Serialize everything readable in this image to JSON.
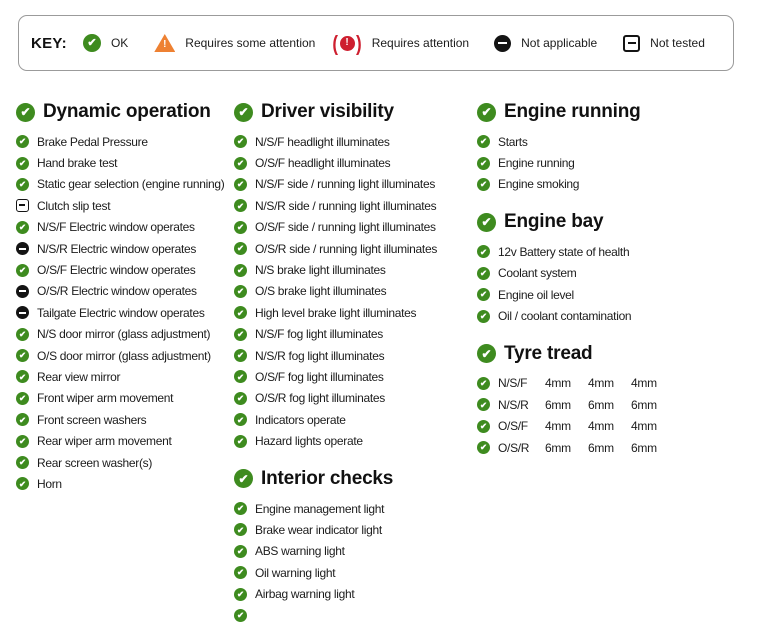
{
  "colors": {
    "ok_green": "#3e8b1f",
    "attention_orange": "#ee8132",
    "attention_red": "#ce1f2f",
    "icon_black": "#141414"
  },
  "key": {
    "label": "KEY:",
    "entries": [
      {
        "status": "ok",
        "icon": "ok-icon",
        "label": "OK"
      },
      {
        "status": "some-attention",
        "icon": "warning-triangle-icon",
        "label": "Requires some attention"
      },
      {
        "status": "attention",
        "icon": "brake-warning-icon",
        "label": "Requires attention"
      },
      {
        "status": "not-applicable",
        "icon": "not-applicable-icon",
        "label": "Not applicable"
      },
      {
        "status": "not-tested",
        "icon": "not-tested-icon",
        "label": "Not tested"
      }
    ]
  },
  "columns": [
    {
      "sections": [
        {
          "title": "Dynamic operation",
          "status": "ok",
          "items": [
            {
              "status": "ok",
              "label": "Brake Pedal Pressure"
            },
            {
              "status": "ok",
              "label": "Hand brake test"
            },
            {
              "status": "ok",
              "label": "Static gear selection (engine running)"
            },
            {
              "status": "not-tested",
              "label": "Clutch slip test"
            },
            {
              "status": "ok",
              "label": "N/S/F Electric window operates"
            },
            {
              "status": "not-applicable",
              "label": "N/S/R Electric window operates"
            },
            {
              "status": "ok",
              "label": "O/S/F Electric window operates"
            },
            {
              "status": "not-applicable",
              "label": "O/S/R Electric window operates"
            },
            {
              "status": "not-applicable",
              "label": "Tailgate Electric window operates"
            },
            {
              "status": "ok",
              "label": "N/S door mirror (glass adjustment)"
            },
            {
              "status": "ok",
              "label": "O/S door mirror (glass adjustment)"
            },
            {
              "status": "ok",
              "label": "Rear view mirror"
            },
            {
              "status": "ok",
              "label": "Front wiper arm movement"
            },
            {
              "status": "ok",
              "label": "Front screen washers"
            },
            {
              "status": "ok",
              "label": "Rear wiper arm movement"
            },
            {
              "status": "ok",
              "label": "Rear screen washer(s)"
            },
            {
              "status": "ok",
              "label": "Horn"
            }
          ]
        }
      ]
    },
    {
      "sections": [
        {
          "title": "Driver visibility",
          "status": "ok",
          "items": [
            {
              "status": "ok",
              "label": "N/S/F headlight illuminates"
            },
            {
              "status": "ok",
              "label": "O/S/F headlight illuminates"
            },
            {
              "status": "ok",
              "label": "N/S/F side / running light illuminates"
            },
            {
              "status": "ok",
              "label": "N/S/R side / running light illuminates"
            },
            {
              "status": "ok",
              "label": "O/S/F side / running light illuminates"
            },
            {
              "status": "ok",
              "label": "O/S/R side / running light illuminates"
            },
            {
              "status": "ok",
              "label": "N/S brake light illuminates"
            },
            {
              "status": "ok",
              "label": "O/S brake light illuminates"
            },
            {
              "status": "ok",
              "label": "High level brake light illuminates"
            },
            {
              "status": "ok",
              "label": "N/S/F fog light illuminates"
            },
            {
              "status": "ok",
              "label": "N/S/R fog light illuminates"
            },
            {
              "status": "ok",
              "label": "O/S/F fog light illuminates"
            },
            {
              "status": "ok",
              "label": "O/S/R fog light illuminates"
            },
            {
              "status": "ok",
              "label": "Indicators operate"
            },
            {
              "status": "ok",
              "label": "Hazard lights operate"
            }
          ]
        },
        {
          "title": "Interior checks",
          "status": "ok",
          "items": [
            {
              "status": "ok",
              "label": "Engine management light"
            },
            {
              "status": "ok",
              "label": "Brake wear indicator light"
            },
            {
              "status": "ok",
              "label": "ABS warning light"
            },
            {
              "status": "ok",
              "label": "Oil warning light"
            },
            {
              "status": "ok",
              "label": "Airbag warning light"
            },
            {
              "status": "ok",
              "label": ""
            }
          ]
        }
      ]
    },
    {
      "sections": [
        {
          "title": "Engine running",
          "status": "ok",
          "items": [
            {
              "status": "ok",
              "label": "Starts"
            },
            {
              "status": "ok",
              "label": "Engine running"
            },
            {
              "status": "ok",
              "label": "Engine smoking"
            }
          ]
        },
        {
          "title": "Engine bay",
          "status": "ok",
          "items": [
            {
              "status": "ok",
              "label": "12v Battery state of health"
            },
            {
              "status": "ok",
              "label": "Coolant system"
            },
            {
              "status": "ok",
              "label": "Engine oil level"
            },
            {
              "status": "ok",
              "label": "Oil / coolant contamination"
            }
          ]
        },
        {
          "title": "Tyre tread",
          "status": "ok",
          "items": [
            {
              "status": "ok",
              "label": "N/S/F",
              "values": [
                "4mm",
                "4mm",
                "4mm"
              ]
            },
            {
              "status": "ok",
              "label": "N/S/R",
              "values": [
                "6mm",
                "6mm",
                "6mm"
              ]
            },
            {
              "status": "ok",
              "label": "O/S/F",
              "values": [
                "4mm",
                "4mm",
                "4mm"
              ]
            },
            {
              "status": "ok",
              "label": "O/S/R",
              "values": [
                "6mm",
                "6mm",
                "6mm"
              ]
            }
          ]
        }
      ]
    }
  ]
}
